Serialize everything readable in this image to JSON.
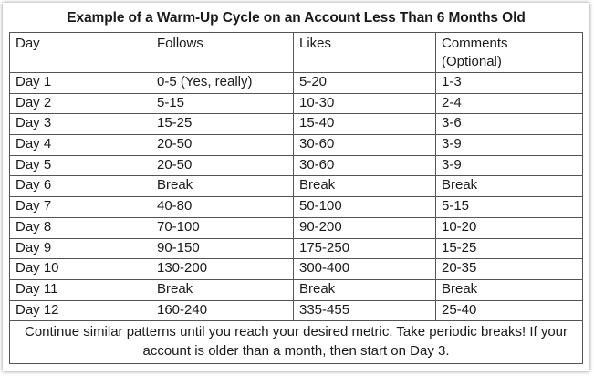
{
  "title": "Example of a Warm-Up Cycle on an Account Less Than 6 Months Old",
  "headers": {
    "day": "Day",
    "follows": "Follows",
    "likes": "Likes",
    "comments": "Comments",
    "comments_note": "(Optional)"
  },
  "rows": [
    {
      "day": "Day 1",
      "follows": "0-5 (Yes, really)",
      "likes": "5-20",
      "comments": "1-3"
    },
    {
      "day": "Day 2",
      "follows": "5-15",
      "likes": "10-30",
      "comments": "2-4"
    },
    {
      "day": "Day 3",
      "follows": "15-25",
      "likes": "15-40",
      "comments": "3-6"
    },
    {
      "day": "Day 4",
      "follows": "20-50",
      "likes": "30-60",
      "comments": "3-9"
    },
    {
      "day": "Day 5",
      "follows": "20-50",
      "likes": "30-60",
      "comments": "3-9"
    },
    {
      "day": "Day 6",
      "follows": "Break",
      "likes": "Break",
      "comments": "Break"
    },
    {
      "day": "Day 7",
      "follows": "40-80",
      "likes": "50-100",
      "comments": "5-15"
    },
    {
      "day": "Day 8",
      "follows": "70-100",
      "likes": "90-200",
      "comments": "10-20"
    },
    {
      "day": "Day 9",
      "follows": "90-150",
      "likes": "175-250",
      "comments": "15-25"
    },
    {
      "day": "Day 10",
      "follows": "130-200",
      "likes": "300-400",
      "comments": "20-35"
    },
    {
      "day": "Day 11",
      "follows": "Break",
      "likes": "Break",
      "comments": "Break"
    },
    {
      "day": "Day 12",
      "follows": "160-240",
      "likes": "335-455",
      "comments": "25-40"
    }
  ],
  "footer": "Continue similar patterns until you reach your desired metric. Take periodic breaks! If your account is older than a month, then start on Day 3."
}
